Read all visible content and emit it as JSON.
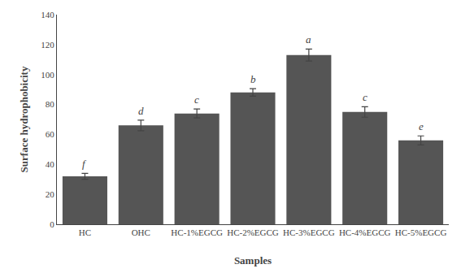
{
  "chart_data": {
    "type": "bar",
    "categories": [
      "HC",
      "OHC",
      "HC-1%EGCG",
      "HC-2%EGCG",
      "HC-3%EGCG",
      "HC-4%EGCG",
      "HC-5%EGCG"
    ],
    "values": [
      32,
      66,
      74,
      88,
      113,
      75,
      56
    ],
    "errors": [
      2.0,
      3.5,
      3.0,
      2.5,
      4.0,
      3.5,
      3.0
    ],
    "annotations": [
      "f",
      "d",
      "c",
      "b",
      "a",
      "c",
      "e"
    ],
    "color": "#555555",
    "xlabel": "Samples",
    "ylabel": "Surface hydrophobicity",
    "ylim": [
      0,
      140
    ],
    "yticks": [
      0,
      20,
      40,
      60,
      80,
      100,
      120,
      140
    ],
    "grid": false
  }
}
